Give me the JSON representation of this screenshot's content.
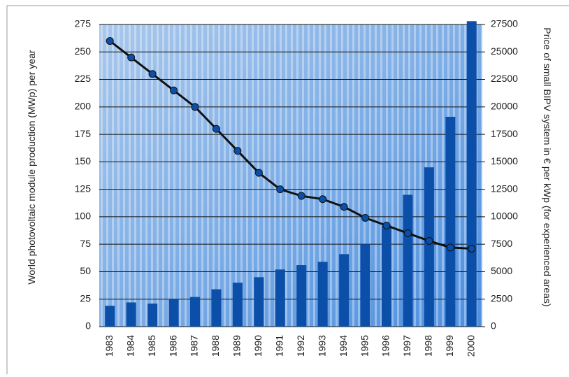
{
  "chart_data": {
    "type": "bar-line",
    "y_label": "World photovoltaic module production (MWp) per year",
    "y2_label": "Price of small BIPV system in € per kWp (for experienced areas)",
    "categories": [
      "1983",
      "1984",
      "1985",
      "1986",
      "1987",
      "1988",
      "1989",
      "1990",
      "1991",
      "1992",
      "1993",
      "1994",
      "1995",
      "1996",
      "1997",
      "1998",
      "1999",
      "2000"
    ],
    "series": [
      {
        "name": "Module production",
        "type": "bar",
        "color": "#0b4fa8",
        "values": [
          19,
          22,
          21,
          25,
          27,
          34,
          40,
          45,
          52,
          56,
          59,
          66,
          75,
          92,
          120,
          145,
          191,
          278
        ]
      },
      {
        "name": "System price",
        "type": "line",
        "axis": "y2",
        "color": "#111111",
        "values": [
          26000,
          24500,
          23000,
          21500,
          20000,
          18000,
          16000,
          14000,
          12500,
          11900,
          11600,
          10900,
          9900,
          9200,
          8500,
          7800,
          7200,
          7100
        ]
      }
    ],
    "ylim": [
      0,
      275
    ],
    "yticks": [
      0,
      25,
      50,
      75,
      100,
      125,
      150,
      175,
      200,
      225,
      250,
      275
    ],
    "y2lim": [
      0,
      27500
    ],
    "y2ticks": [
      0,
      2500,
      5000,
      7500,
      10000,
      12500,
      15000,
      17500,
      20000,
      22500,
      25000,
      27500
    ],
    "grid": true
  }
}
